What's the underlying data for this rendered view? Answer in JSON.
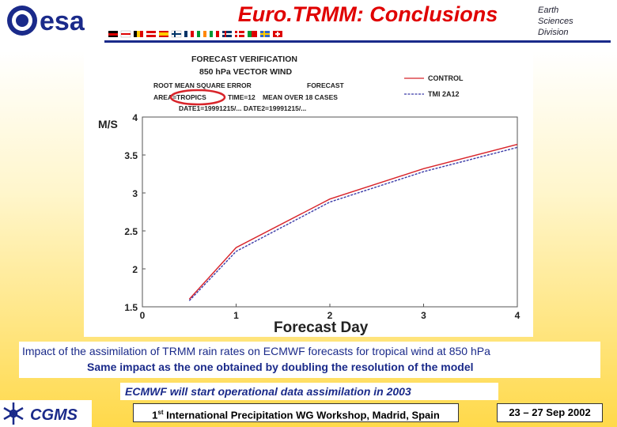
{
  "header": {
    "logo_text": "esa",
    "title": "Euro.TRMM: Conclusions",
    "division": {
      "earth": "Earth",
      "sciences": "Sciences",
      "division": "Division"
    }
  },
  "chart_data": {
    "type": "line",
    "header_lines": [
      "FORECAST VERIFICATION",
      "850 hPa VECTOR WIND",
      "ROOT MEAN SQUARE ERROR",
      "FORECAST",
      "AREA=TROPICS",
      "TIME=12",
      "MEAN OVER 18 CASES",
      "DATE1=19991215/... DATE2=19991215/..."
    ],
    "xlabel": "Forecast Day",
    "ylabel": "M/S",
    "xlim": [
      0,
      4
    ],
    "ylim": [
      1.5,
      4
    ],
    "xticks": [
      "0",
      "1",
      "2",
      "3",
      "4"
    ],
    "yticks": [
      "1.5",
      "2",
      "2.5",
      "3",
      "3.5",
      "4"
    ],
    "legend_position": "top-right",
    "series": [
      {
        "name": "CONTROL",
        "color": "#d8242a",
        "x": [
          0.5,
          1,
          2,
          3,
          4
        ],
        "y": [
          1.6,
          2.28,
          2.92,
          3.32,
          3.64
        ]
      },
      {
        "name": "TMI 2A12",
        "color": "#3b3ba8",
        "x": [
          0.5,
          1,
          2,
          3,
          4
        ],
        "y": [
          1.58,
          2.23,
          2.88,
          3.28,
          3.6
        ]
      }
    ],
    "annotation": {
      "target": "TROPICS",
      "style": "red-ellipse"
    }
  },
  "caption": {
    "line1": "Impact of the assimilation of TRMM rain rates on ECMWF forecasts for tropical wind at 850 hPa",
    "line2": "Same impact as the one obtained by doubling the resolution of the model"
  },
  "ecmwf_note": "ECMWF will start operational  data assimilation in 2003",
  "footer": {
    "cgms_logo": "CGMS",
    "workshop_prefix": "1",
    "workshop_sup": "st",
    "workshop_rest": " International Precipitation WG Workshop, Madrid, Spain",
    "dates": "23 – 27 Sep 2002"
  },
  "colors": {
    "title": "#e00000",
    "navy": "#1a2a8a"
  }
}
